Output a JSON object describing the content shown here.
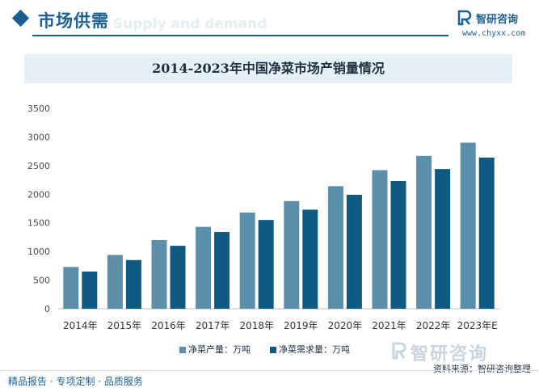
{
  "header": {
    "title": "市场供需",
    "subtitle_watermark": "Supply and demand"
  },
  "brand": {
    "name": "智研咨询",
    "url": "www.chyxx.com"
  },
  "chart_title": "2014-2023年中国净菜市场产销量情况",
  "chart_data": {
    "type": "bar",
    "title": "2014-2023年中国净菜市场产销量情况",
    "categories": [
      "2014年",
      "2015年",
      "2016年",
      "2017年",
      "2018年",
      "2019年",
      "2020年",
      "2021年",
      "2022年",
      "2023年E"
    ],
    "series": [
      {
        "name": "净菜产量：万吨",
        "color": "#5b8faa",
        "values": [
          730,
          940,
          1200,
          1430,
          1680,
          1880,
          2140,
          2420,
          2670,
          2900
        ]
      },
      {
        "name": "净菜需求量：万吨",
        "color": "#0f5a82",
        "values": [
          650,
          850,
          1100,
          1340,
          1550,
          1730,
          1990,
          2230,
          2440,
          2640
        ]
      }
    ],
    "ylim": [
      0,
      3500
    ],
    "yticks": [
      "0",
      "500",
      "1000",
      "1500",
      "2000",
      "2500",
      "3000",
      "3500"
    ],
    "grid": false,
    "legend": "bottom"
  },
  "footer": {
    "left": "精品报告 · 专项定制 · 品质服务",
    "source": "资料来源：智研咨询整理",
    "watermark": "智研咨询"
  },
  "colors": {
    "accent": "#1a5f8f",
    "title_bar_bg": "#e5f0f7"
  }
}
